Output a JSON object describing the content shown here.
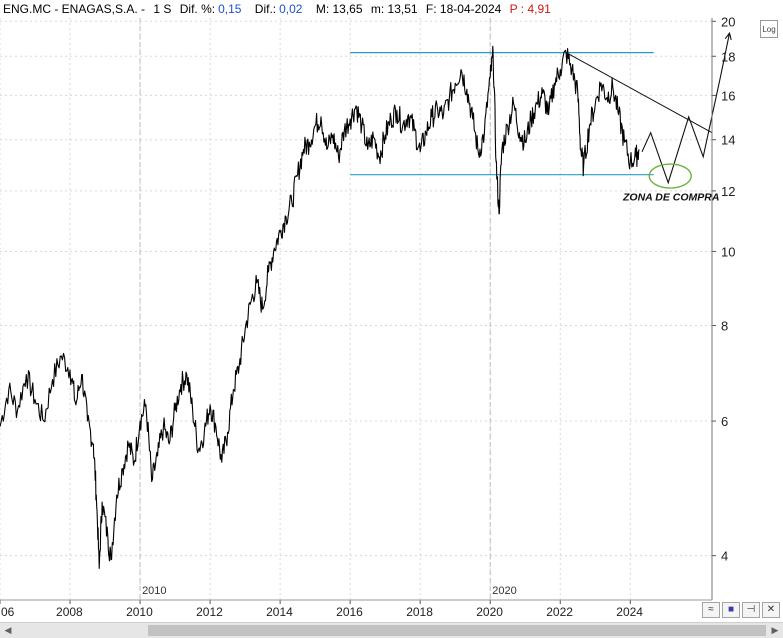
{
  "header": {
    "ticker": "ENG.MC - ENAGAS,S.A. -",
    "timeframe": "1 S",
    "dif_pct_label": "Dif. %:",
    "dif_pct_value": "0,15",
    "dif_label": "Dif.:",
    "dif_value": "0,02",
    "max_label": "M: 13,65",
    "min_label": "m: 13,51",
    "date_label": "F: 18-04-2024",
    "p_label": "P : 4,91"
  },
  "controls": {
    "log_label": "Log",
    "tool_1": "≈",
    "tool_2": "■",
    "tool_3": "⊣",
    "tool_4": "✕",
    "scroll_left": "◀",
    "scroll_right": "▶"
  },
  "colors": {
    "price_line": "#000000",
    "range_lines": "#2a9bc9",
    "circle": "#6db33f",
    "header_value_blue": "#1a4fd6",
    "header_value_red": "#d01515",
    "gridline": "#d8d8d8"
  },
  "chart_data": {
    "type": "line",
    "y_scale": "log",
    "ylim": [
      3.5,
      20.2
    ],
    "xlim": [
      "2006-01",
      "2026-05"
    ],
    "grid": true,
    "y_ticks": [
      4,
      6,
      8,
      10,
      12,
      14,
      16,
      18,
      20
    ],
    "x_ticks": [
      "06",
      "2008",
      "2010",
      "2012",
      "2014",
      "2016",
      "2018",
      "2020",
      "2022",
      "2024"
    ],
    "x_tick_dates": [
      "2006-01",
      "2008-01",
      "2010-01",
      "2012-01",
      "2014-01",
      "2016-01",
      "2018-01",
      "2020-01",
      "2022-01",
      "2024-01"
    ],
    "period_markers": [
      {
        "label": "2010",
        "date": "2010-01"
      },
      {
        "label": "2020",
        "date": "2020-01"
      }
    ],
    "series": [
      {
        "points": [
          [
            "2006-01",
            5.9
          ],
          [
            "2006-04",
            6.6
          ],
          [
            "2006-07",
            6.2
          ],
          [
            "2006-10",
            6.9
          ],
          [
            "2007-01",
            6.4
          ],
          [
            "2007-04",
            6.0
          ],
          [
            "2007-07",
            6.8
          ],
          [
            "2007-10",
            7.3
          ],
          [
            "2008-01",
            7.0
          ],
          [
            "2008-03",
            6.3
          ],
          [
            "2008-05",
            6.9
          ],
          [
            "2008-07",
            6.0
          ],
          [
            "2008-09",
            5.6
          ],
          [
            "2008-10",
            4.8
          ],
          [
            "2008-11",
            3.85
          ],
          [
            "2008-12",
            4.7
          ],
          [
            "2009-02",
            4.2
          ],
          [
            "2009-03",
            3.95
          ],
          [
            "2009-05",
            4.8
          ],
          [
            "2009-07",
            5.2
          ],
          [
            "2009-09",
            5.6
          ],
          [
            "2009-11",
            5.3
          ],
          [
            "2010-01",
            6.0
          ],
          [
            "2010-03",
            6.3
          ],
          [
            "2010-05",
            5.0
          ],
          [
            "2010-07",
            5.4
          ],
          [
            "2010-09",
            5.9
          ],
          [
            "2010-11",
            5.6
          ],
          [
            "2011-01",
            6.2
          ],
          [
            "2011-03",
            6.7
          ],
          [
            "2011-05",
            6.9
          ],
          [
            "2011-07",
            6.2
          ],
          [
            "2011-09",
            5.5
          ],
          [
            "2011-11",
            5.8
          ],
          [
            "2012-01",
            6.3
          ],
          [
            "2012-03",
            5.9
          ],
          [
            "2012-05",
            5.3
          ],
          [
            "2012-07",
            5.8
          ],
          [
            "2012-09",
            6.6
          ],
          [
            "2012-11",
            7.1
          ],
          [
            "2013-01",
            7.9
          ],
          [
            "2013-03",
            8.6
          ],
          [
            "2013-05",
            9.1
          ],
          [
            "2013-07",
            8.4
          ],
          [
            "2013-09",
            9.4
          ],
          [
            "2013-11",
            10.1
          ],
          [
            "2014-01",
            10.6
          ],
          [
            "2014-03",
            11.1
          ],
          [
            "2014-05",
            11.6
          ],
          [
            "2014-07",
            12.6
          ],
          [
            "2014-09",
            13.6
          ],
          [
            "2014-11",
            13.9
          ],
          [
            "2015-01",
            14.6
          ],
          [
            "2015-03",
            15.0
          ],
          [
            "2015-05",
            13.6
          ],
          [
            "2015-07",
            14.2
          ],
          [
            "2015-09",
            13.3
          ],
          [
            "2015-11",
            14.4
          ],
          [
            "2016-01",
            14.9
          ],
          [
            "2016-03",
            15.5
          ],
          [
            "2016-05",
            14.6
          ],
          [
            "2016-07",
            13.6
          ],
          [
            "2016-09",
            14.1
          ],
          [
            "2016-11",
            13.3
          ],
          [
            "2017-01",
            14.2
          ],
          [
            "2017-03",
            14.9
          ],
          [
            "2017-05",
            15.3
          ],
          [
            "2017-07",
            14.6
          ],
          [
            "2017-09",
            15.1
          ],
          [
            "2017-11",
            14.4
          ],
          [
            "2018-01",
            13.5
          ],
          [
            "2018-03",
            14.3
          ],
          [
            "2018-05",
            15.0
          ],
          [
            "2018-07",
            15.3
          ],
          [
            "2018-09",
            15.1
          ],
          [
            "2018-11",
            15.9
          ],
          [
            "2019-01",
            16.6
          ],
          [
            "2019-03",
            17.3
          ],
          [
            "2019-05",
            16.3
          ],
          [
            "2019-07",
            14.9
          ],
          [
            "2019-09",
            13.4
          ],
          [
            "2019-11",
            14.3
          ],
          [
            "2020-01",
            16.9
          ],
          [
            "2020-02",
            18.1
          ],
          [
            "2020-03",
            13.1
          ],
          [
            "2020-04",
            11.2
          ],
          [
            "2020-05",
            13.6
          ],
          [
            "2020-07",
            14.6
          ],
          [
            "2020-09",
            15.6
          ],
          [
            "2020-11",
            14.3
          ],
          [
            "2021-01",
            13.9
          ],
          [
            "2021-03",
            14.9
          ],
          [
            "2021-05",
            15.6
          ],
          [
            "2021-07",
            16.1
          ],
          [
            "2021-09",
            15.1
          ],
          [
            "2021-11",
            16.6
          ],
          [
            "2022-01",
            17.3
          ],
          [
            "2022-03",
            18.2
          ],
          [
            "2022-05",
            17.3
          ],
          [
            "2022-07",
            16.1
          ],
          [
            "2022-08",
            13.6
          ],
          [
            "2022-09",
            12.9
          ],
          [
            "2022-11",
            14.6
          ],
          [
            "2023-01",
            15.6
          ],
          [
            "2023-03",
            16.6
          ],
          [
            "2023-05",
            15.9
          ],
          [
            "2023-07",
            16.4
          ],
          [
            "2023-09",
            15.1
          ],
          [
            "2023-11",
            13.9
          ],
          [
            "2024-01",
            13.1
          ],
          [
            "2024-03",
            13.3
          ],
          [
            "2024-04",
            13.6
          ]
        ]
      }
    ],
    "annotations": {
      "range_top": {
        "y": 18.2,
        "from": "2016-01",
        "to": "2024-09"
      },
      "range_bottom": {
        "y": 12.6,
        "from": "2016-01",
        "to": "2024-09"
      },
      "trendline": {
        "from": [
          "2022-03",
          18.2
        ],
        "to": [
          "2026-05",
          14.3
        ]
      },
      "projection": [
        [
          "2024-05",
          13.5
        ],
        [
          "2024-08",
          14.3
        ],
        [
          "2025-02",
          12.3
        ],
        [
          "2025-09",
          15.0
        ],
        [
          "2026-02",
          13.3
        ],
        [
          "2026-08",
          17.0
        ],
        [
          "2026-11",
          19.3
        ]
      ],
      "circle": {
        "x": "2025-02",
        "y": 12.55
      },
      "label": {
        "text": "ZONA DE COMPRA",
        "x": "2025-02",
        "y": 11.8
      }
    }
  }
}
